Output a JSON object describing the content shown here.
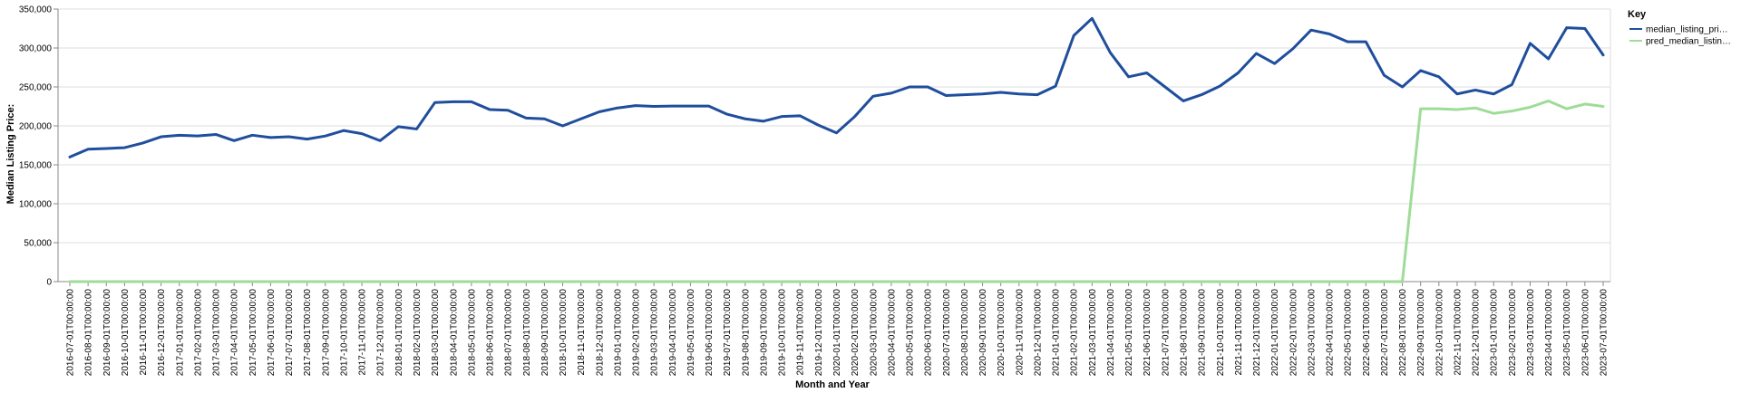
{
  "chart_data": {
    "type": "line",
    "title": "",
    "xlabel": "Month and Year",
    "ylabel": "Median Listing Price:",
    "ylim": [
      0,
      350000
    ],
    "yticks": [
      0,
      50000,
      100000,
      150000,
      200000,
      250000,
      300000,
      350000
    ],
    "ytick_labels": [
      "0",
      "50,000",
      "100,000",
      "150,000",
      "200,000",
      "250,000",
      "300,000",
      "350,000"
    ],
    "grid": true,
    "legend": {
      "title": "Key",
      "position": "right",
      "entries": [
        "median_listing_pri…",
        "pred_median_listin…"
      ]
    },
    "x": [
      "2016-07-01T00:00:00",
      "2016-08-01T00:00:00",
      "2016-09-01T00:00:00",
      "2016-10-01T00:00:00",
      "2016-11-01T00:00:00",
      "2016-12-01T00:00:00",
      "2017-01-01T00:00:00",
      "2017-02-01T00:00:00",
      "2017-03-01T00:00:00",
      "2017-04-01T00:00:00",
      "2017-05-01T00:00:00",
      "2017-06-01T00:00:00",
      "2017-07-01T00:00:00",
      "2017-08-01T00:00:00",
      "2017-09-01T00:00:00",
      "2017-10-01T00:00:00",
      "2017-11-01T00:00:00",
      "2017-12-01T00:00:00",
      "2018-01-01T00:00:00",
      "2018-02-01T00:00:00",
      "2018-03-01T00:00:00",
      "2018-04-01T00:00:00",
      "2018-05-01T00:00:00",
      "2018-06-01T00:00:00",
      "2018-07-01T00:00:00",
      "2018-08-01T00:00:00",
      "2018-09-01T00:00:00",
      "2018-10-01T00:00:00",
      "2018-11-01T00:00:00",
      "2018-12-01T00:00:00",
      "2019-01-01T00:00:00",
      "2019-02-01T00:00:00",
      "2019-03-01T00:00:00",
      "2019-04-01T00:00:00",
      "2019-05-01T00:00:00",
      "2019-06-01T00:00:00",
      "2019-07-01T00:00:00",
      "2019-08-01T00:00:00",
      "2019-09-01T00:00:00",
      "2019-10-01T00:00:00",
      "2019-11-01T00:00:00",
      "2019-12-01T00:00:00",
      "2020-01-01T00:00:00",
      "2020-02-01T00:00:00",
      "2020-03-01T00:00:00",
      "2020-04-01T00:00:00",
      "2020-05-01T00:00:00",
      "2020-06-01T00:00:00",
      "2020-07-01T00:00:00",
      "2020-08-01T00:00:00",
      "2020-09-01T00:00:00",
      "2020-10-01T00:00:00",
      "2020-11-01T00:00:00",
      "2020-12-01T00:00:00",
      "2021-01-01T00:00:00",
      "2021-02-01T00:00:00",
      "2021-03-01T00:00:00",
      "2021-04-01T00:00:00",
      "2021-05-01T00:00:00",
      "2021-06-01T00:00:00",
      "2021-07-01T00:00:00",
      "2021-08-01T00:00:00",
      "2021-09-01T00:00:00",
      "2021-10-01T00:00:00",
      "2021-11-01T00:00:00",
      "2021-12-01T00:00:00",
      "2022-01-01T00:00:00",
      "2022-02-01T00:00:00",
      "2022-03-01T00:00:00",
      "2022-04-01T00:00:00",
      "2022-05-01T00:00:00",
      "2022-06-01T00:00:00",
      "2022-07-01T00:00:00",
      "2022-08-01T00:00:00",
      "2022-09-01T00:00:00",
      "2022-10-01T00:00:00",
      "2022-11-01T00:00:00",
      "2022-12-01T00:00:00",
      "2023-01-01T00:00:00",
      "2023-02-01T00:00:00",
      "2023-03-01T00:00:00",
      "2023-04-01T00:00:00",
      "2023-05-01T00:00:00",
      "2023-06-01T00:00:00",
      "2023-07-01T00:00:00"
    ],
    "series": [
      {
        "name": "median_listing_pri…",
        "color": "#1f4e9c",
        "values": [
          160000,
          170000,
          171000,
          172000,
          178000,
          186000,
          188000,
          187000,
          189000,
          181000,
          188000,
          185000,
          186000,
          183000,
          187000,
          194000,
          190000,
          181000,
          199000,
          196000,
          230000,
          231000,
          231000,
          221000,
          220000,
          210000,
          209000,
          200000,
          209000,
          218000,
          223000,
          226000,
          225000,
          225500,
          225500,
          225500,
          215000,
          209000,
          206000,
          212000,
          213000,
          201000,
          191000,
          212000,
          238000,
          242000,
          250000,
          250000,
          239000,
          240000,
          241000,
          243000,
          241000,
          240000,
          251000,
          316000,
          338000,
          294000,
          263000,
          268000,
          250000,
          232000,
          240000,
          251000,
          268000,
          293000,
          280000,
          299000,
          323000,
          318000,
          308000,
          308000,
          265000,
          250000,
          271000,
          263000,
          241000,
          246000,
          241000,
          253000,
          306000,
          286000,
          326000,
          325000,
          291000
        ]
      },
      {
        "name": "pred_median_listin…",
        "color": "#9fdc98",
        "values": [
          0,
          0,
          0,
          0,
          0,
          0,
          0,
          0,
          0,
          0,
          0,
          0,
          0,
          0,
          0,
          0,
          0,
          0,
          0,
          0,
          0,
          0,
          0,
          0,
          0,
          0,
          0,
          0,
          0,
          0,
          0,
          0,
          0,
          0,
          0,
          0,
          0,
          0,
          0,
          0,
          0,
          0,
          0,
          0,
          0,
          0,
          0,
          0,
          0,
          0,
          0,
          0,
          0,
          0,
          0,
          0,
          0,
          0,
          0,
          0,
          0,
          0,
          0,
          0,
          0,
          0,
          0,
          0,
          0,
          0,
          0,
          0,
          0,
          0,
          222000,
          222000,
          221000,
          223000,
          216000,
          219000,
          224000,
          232000,
          222000,
          228000,
          225000
        ]
      }
    ]
  }
}
